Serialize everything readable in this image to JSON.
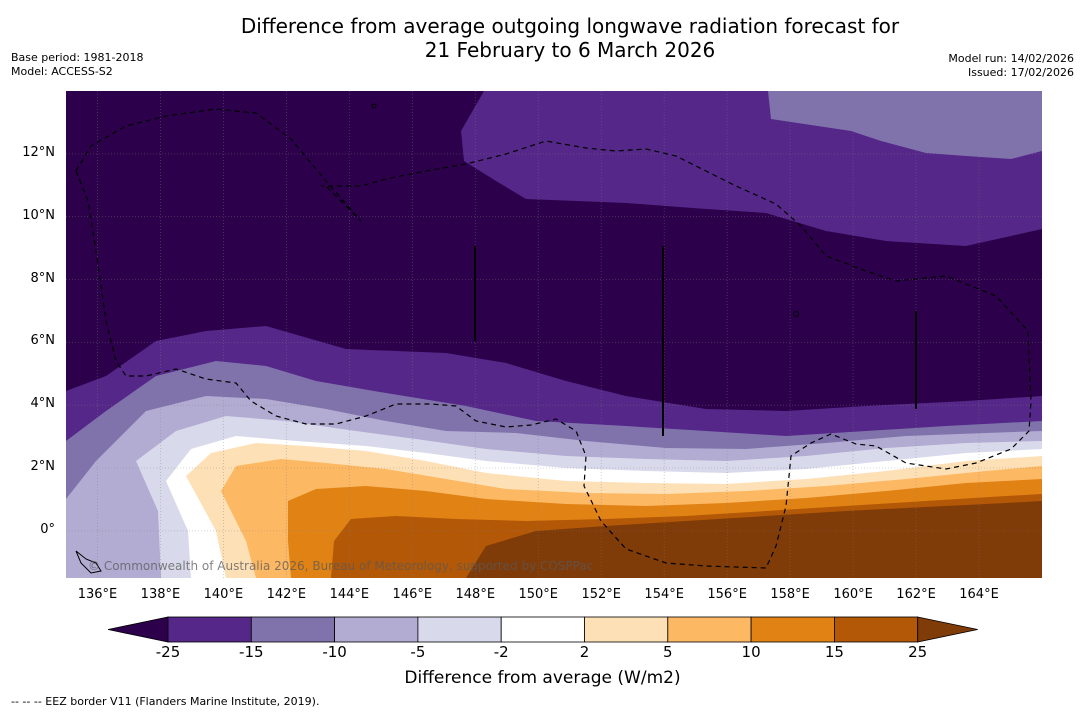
{
  "title_line1": "Difference from average outgoing longwave radiation forecast for",
  "title_line2": "21 February to 6 March 2026",
  "base_period": "Base period: 1981-2018",
  "model": "Model: ACCESS-S2",
  "model_run": "Model run: 14/02/2026",
  "issued": "Issued: 17/02/2026",
  "copyright": "© Commonwealth of Australia 2026, Bureau of Meteorology, supported by COSPPac",
  "eez_legend": "--  --  -- EEZ border V11 (Flanders Marine Institute, 2019).",
  "map": {
    "lat_labels": [
      "12°N",
      "10°N",
      "8°N",
      "6°N",
      "4°N",
      "2°N",
      "0°"
    ],
    "lon_labels": [
      "136°E",
      "138°E",
      "140°E",
      "142°E",
      "144°E",
      "146°E",
      "148°E",
      "150°E",
      "152°E",
      "154°E",
      "156°E",
      "158°E",
      "160°E",
      "162°E",
      "164°E"
    ],
    "lat_values": [
      12,
      10,
      8,
      6,
      4,
      2,
      0
    ],
    "lon_values": [
      136,
      138,
      140,
      142,
      144,
      146,
      148,
      150,
      152,
      154,
      156,
      158,
      160,
      162,
      164
    ],
    "lon_range": [
      135,
      166
    ],
    "lat_range": [
      -1.5,
      14
    ]
  },
  "colorbar": {
    "label": "Difference from average (W/m2)",
    "ticks": [
      "-25",
      "-15",
      "-10",
      "-5",
      "-2",
      "2",
      "5",
      "10",
      "15",
      "25"
    ],
    "colors": [
      "#2d004b",
      "#542788",
      "#8073ac",
      "#b2abd2",
      "#d8daeb",
      "#ffffff",
      "#fee0b6",
      "#fdb863",
      "#e08214",
      "#b35806",
      "#7f3b08"
    ]
  },
  "colors": {
    "c_n25": "#2d004b",
    "c_n15": "#542788",
    "c_n10": "#8073ac",
    "c_n5": "#b2abd2",
    "c_n2": "#d8daeb",
    "c_0": "#ffffff",
    "c_p2": "#fee0b6",
    "c_p5": "#fdb863",
    "c_p10": "#e08214",
    "c_p15": "#b35806",
    "c_p25": "#7f3b08"
  }
}
